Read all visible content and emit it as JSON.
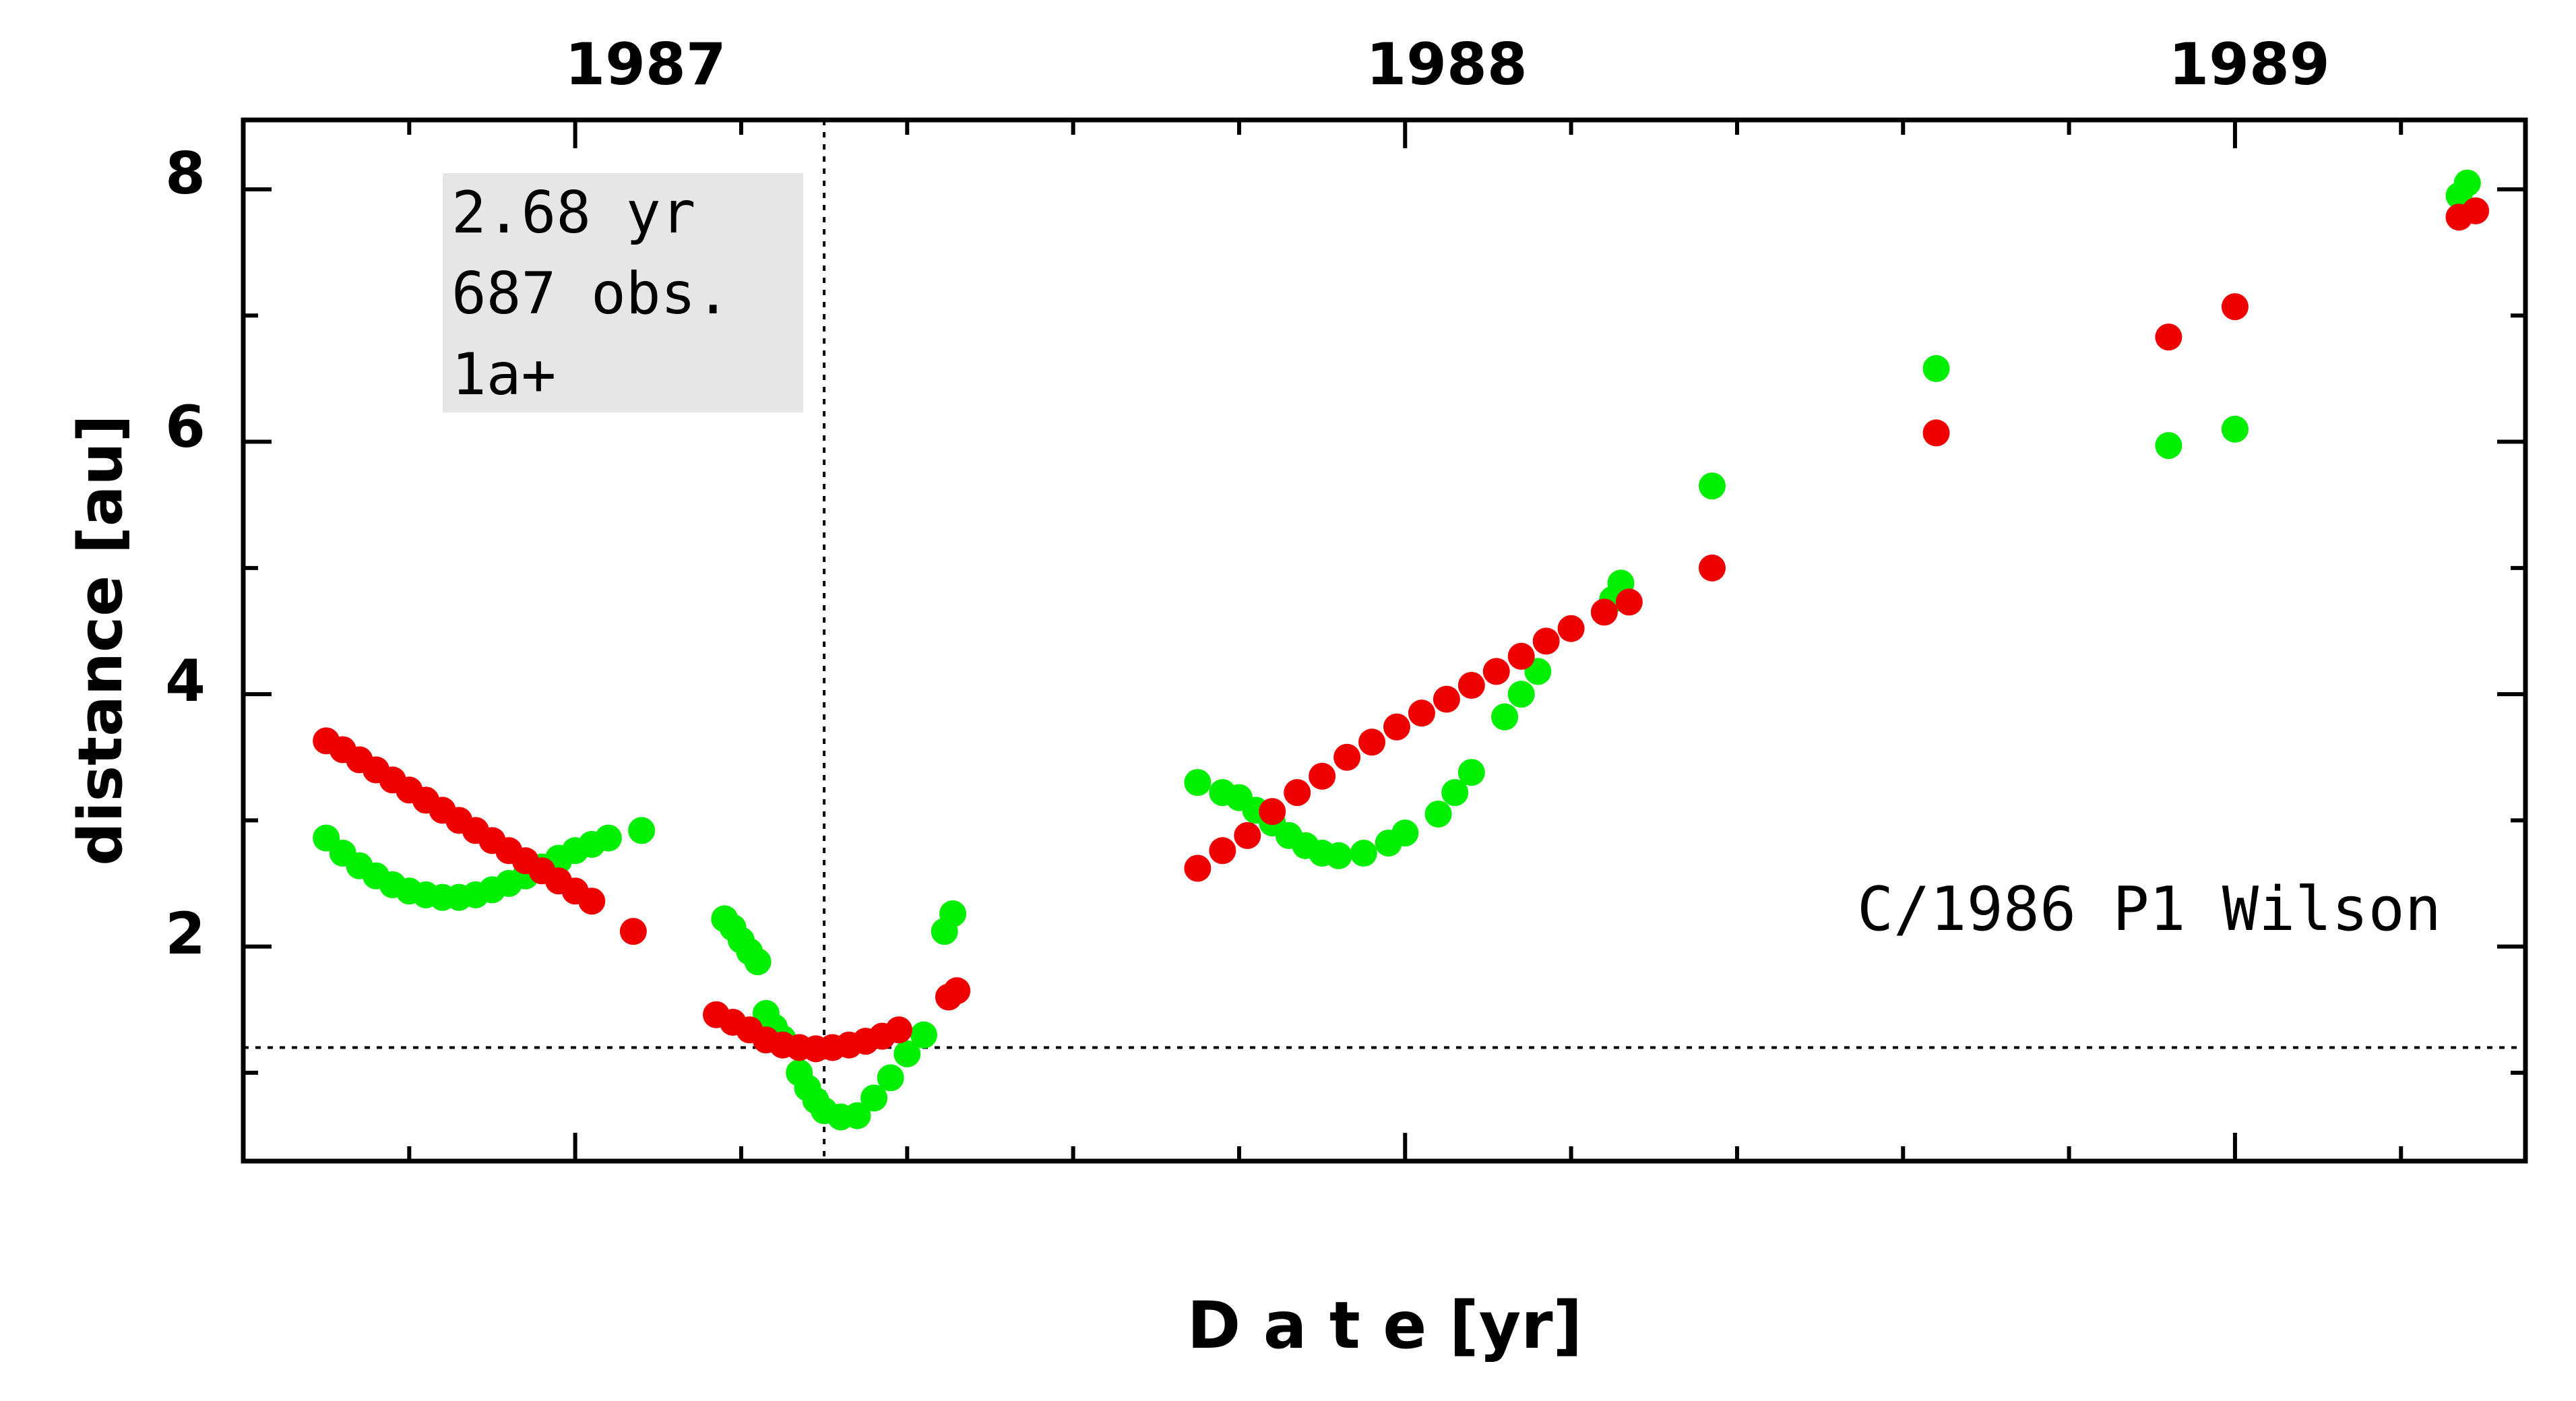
{
  "chart_data": {
    "type": "scatter",
    "title": "C/1986 P1 Wilson",
    "xlabel": "D a t e [yr]",
    "ylabel": "distance [au]",
    "xlim": [
      1986.6,
      1989.35
    ],
    "ylim": [
      0.3,
      8.55
    ],
    "x_top_ticks": [
      "1987",
      "1988",
      "1989"
    ],
    "y_ticks": [
      "2",
      "4",
      "6",
      "8"
    ],
    "info_box": [
      "2.68 yr",
      "687 obs.",
      "1a+"
    ],
    "info_box_color": "#e6e6e6",
    "reference_lines": {
      "vertical_date": 1987.3,
      "horizontal_distance": 1.2
    },
    "series": [
      {
        "color": "#00ee00",
        "points": [
          [
            1986.7,
            2.86
          ],
          [
            1986.72,
            2.74
          ],
          [
            1986.74,
            2.64
          ],
          [
            1986.76,
            2.56
          ],
          [
            1986.78,
            2.49
          ],
          [
            1986.8,
            2.44
          ],
          [
            1986.82,
            2.41
          ],
          [
            1986.84,
            2.39
          ],
          [
            1986.86,
            2.39
          ],
          [
            1986.88,
            2.41
          ],
          [
            1986.9,
            2.45
          ],
          [
            1986.92,
            2.5
          ],
          [
            1986.94,
            2.56
          ],
          [
            1986.96,
            2.63
          ],
          [
            1986.98,
            2.7
          ],
          [
            1987.0,
            2.76
          ],
          [
            1987.02,
            2.81
          ],
          [
            1987.04,
            2.86
          ],
          [
            1986.98,
            2.68
          ],
          [
            1987.08,
            2.92
          ],
          [
            1987.18,
            2.22
          ],
          [
            1987.19,
            2.15
          ],
          [
            1987.2,
            2.05
          ],
          [
            1987.21,
            1.96
          ],
          [
            1987.22,
            1.88
          ],
          [
            1987.23,
            1.47
          ],
          [
            1987.24,
            1.36
          ],
          [
            1987.25,
            1.27
          ],
          [
            1987.27,
            1.0
          ],
          [
            1987.28,
            0.88
          ],
          [
            1987.29,
            0.78
          ],
          [
            1987.3,
            0.7
          ],
          [
            1987.32,
            0.65
          ],
          [
            1987.34,
            0.66
          ],
          [
            1987.36,
            0.8
          ],
          [
            1987.38,
            0.96
          ],
          [
            1987.4,
            1.15
          ],
          [
            1987.42,
            1.3
          ],
          [
            1987.445,
            2.12
          ],
          [
            1987.455,
            2.26
          ],
          [
            1987.75,
            3.3
          ],
          [
            1987.78,
            3.22
          ],
          [
            1987.8,
            3.18
          ],
          [
            1987.82,
            3.08
          ],
          [
            1987.84,
            2.98
          ],
          [
            1987.86,
            2.88
          ],
          [
            1987.88,
            2.8
          ],
          [
            1987.9,
            2.74
          ],
          [
            1987.92,
            2.72
          ],
          [
            1987.95,
            2.74
          ],
          [
            1987.98,
            2.82
          ],
          [
            1988.0,
            2.9
          ],
          [
            1988.04,
            3.05
          ],
          [
            1988.06,
            3.22
          ],
          [
            1988.08,
            3.38
          ],
          [
            1988.12,
            3.82
          ],
          [
            1988.14,
            4.0
          ],
          [
            1988.16,
            4.18
          ],
          [
            1988.25,
            4.75
          ],
          [
            1988.26,
            4.88
          ],
          [
            1988.37,
            5.65
          ],
          [
            1988.64,
            6.58
          ],
          [
            1988.92,
            5.97
          ],
          [
            1989.0,
            6.1
          ],
          [
            1989.27,
            7.95
          ],
          [
            1989.28,
            8.05
          ]
        ]
      },
      {
        "color": "#ee0000",
        "points": [
          [
            1986.7,
            3.63
          ],
          [
            1986.72,
            3.56
          ],
          [
            1986.74,
            3.48
          ],
          [
            1986.76,
            3.4
          ],
          [
            1986.78,
            3.32
          ],
          [
            1986.8,
            3.24
          ],
          [
            1986.82,
            3.16
          ],
          [
            1986.84,
            3.08
          ],
          [
            1986.86,
            3.0
          ],
          [
            1986.88,
            2.92
          ],
          [
            1986.9,
            2.84
          ],
          [
            1986.92,
            2.76
          ],
          [
            1986.94,
            2.68
          ],
          [
            1986.96,
            2.6
          ],
          [
            1986.98,
            2.52
          ],
          [
            1987.0,
            2.44
          ],
          [
            1987.02,
            2.36
          ],
          [
            1987.07,
            2.12
          ],
          [
            1987.17,
            1.46
          ],
          [
            1987.19,
            1.4
          ],
          [
            1987.21,
            1.34
          ],
          [
            1987.23,
            1.26
          ],
          [
            1987.25,
            1.22
          ],
          [
            1987.27,
            1.2
          ],
          [
            1987.29,
            1.19
          ],
          [
            1987.31,
            1.2
          ],
          [
            1987.33,
            1.22
          ],
          [
            1987.35,
            1.25
          ],
          [
            1987.37,
            1.29
          ],
          [
            1987.39,
            1.34
          ],
          [
            1987.45,
            1.6
          ],
          [
            1987.46,
            1.65
          ],
          [
            1987.75,
            2.62
          ],
          [
            1987.78,
            2.76
          ],
          [
            1987.81,
            2.88
          ],
          [
            1987.84,
            3.07
          ],
          [
            1987.87,
            3.22
          ],
          [
            1987.9,
            3.35
          ],
          [
            1987.93,
            3.5
          ],
          [
            1987.96,
            3.62
          ],
          [
            1987.99,
            3.74
          ],
          [
            1988.02,
            3.85
          ],
          [
            1988.05,
            3.96
          ],
          [
            1988.08,
            4.07
          ],
          [
            1988.11,
            4.18
          ],
          [
            1988.14,
            4.3
          ],
          [
            1988.17,
            4.42
          ],
          [
            1988.2,
            4.52
          ],
          [
            1988.24,
            4.65
          ],
          [
            1988.27,
            4.73
          ],
          [
            1988.37,
            5.0
          ],
          [
            1988.64,
            6.07
          ],
          [
            1988.92,
            6.83
          ],
          [
            1989.0,
            7.07
          ],
          [
            1989.27,
            7.78
          ],
          [
            1989.29,
            7.83
          ]
        ]
      }
    ]
  }
}
